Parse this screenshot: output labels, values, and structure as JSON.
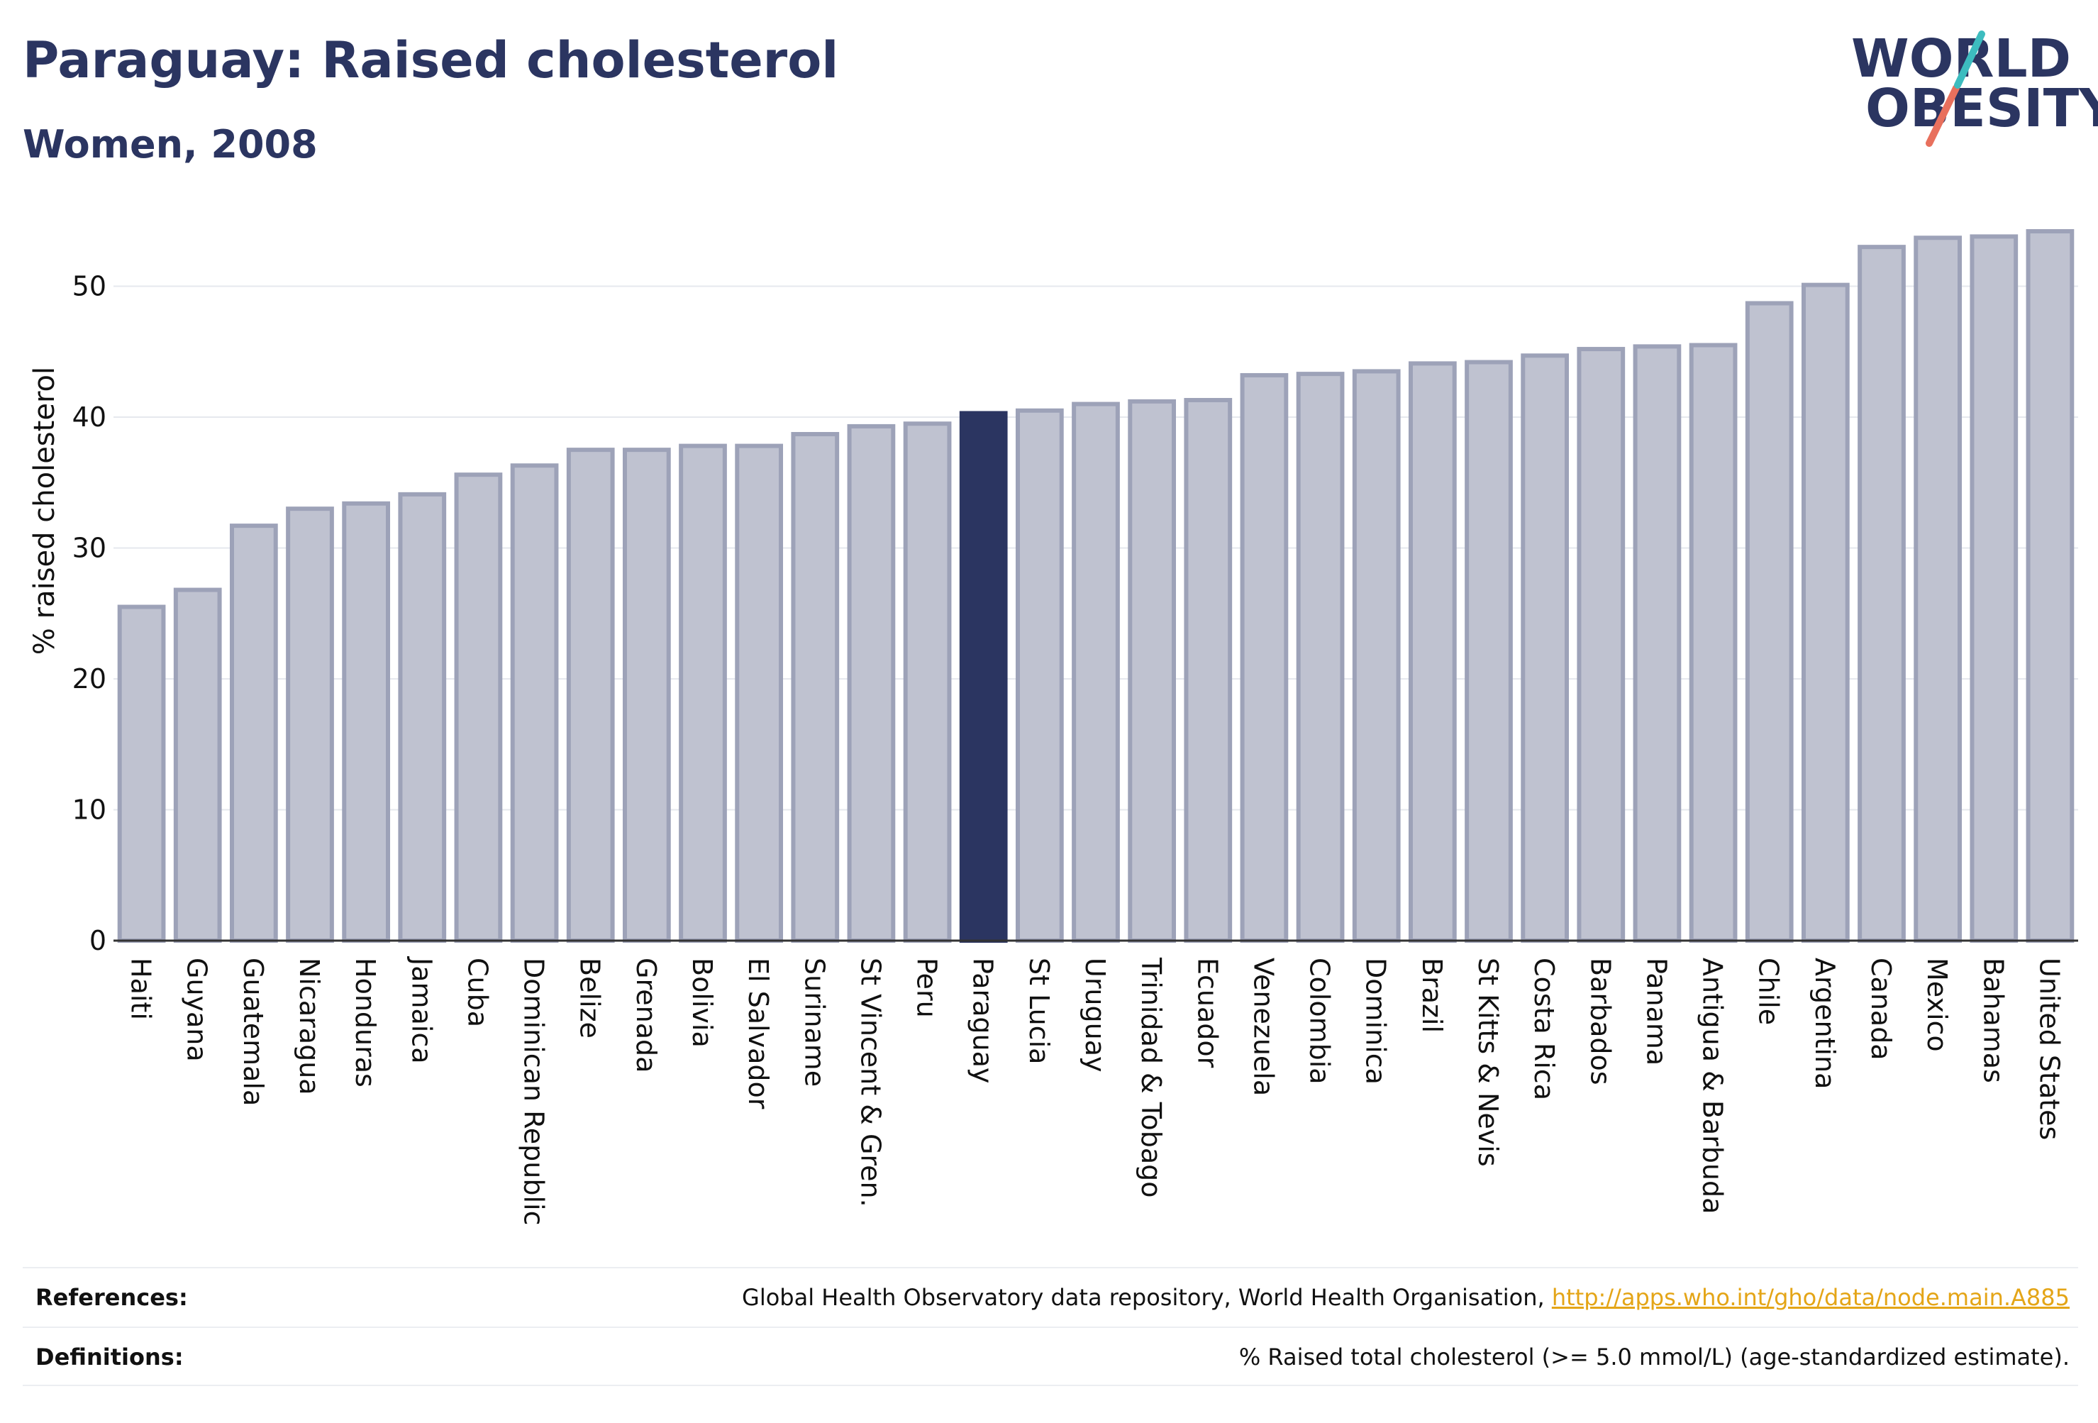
{
  "header": {
    "title": "Paraguay: Raised cholesterol",
    "subtitle": "Women, 2008"
  },
  "logo": {
    "line1": "WORLD",
    "line2": "OBESITY",
    "colors": {
      "teal": "#3dbcbf",
      "coral": "#e8705d",
      "navy": "#2b3561"
    }
  },
  "colors": {
    "bar": "#bfc2d0",
    "bar_outline": "#9da2b8",
    "highlight": "#2b3561",
    "grid": "#e6e8ee",
    "axis": "#333333",
    "link": "#e4a517"
  },
  "chart_data": {
    "type": "bar",
    "ylabel": "% raised cholesterol",
    "ylim": [
      0,
      55
    ],
    "yticks": [
      0,
      10,
      20,
      30,
      40,
      50
    ],
    "grid": "horizontal",
    "highlight": "Paraguay",
    "categories": [
      "Haiti",
      "Guyana",
      "Guatemala",
      "Nicaragua",
      "Honduras",
      "Jamaica",
      "Cuba",
      "Dominican Republic",
      "Belize",
      "Grenada",
      "Bolivia",
      "El Salvador",
      "Suriname",
      "St Vincent & Gren.",
      "Peru",
      "Paraguay",
      "St Lucia",
      "Uruguay",
      "Trinidad & Tobago",
      "Ecuador",
      "Venezuela",
      "Colombia",
      "Dominica",
      "Brazil",
      "St Kitts & Nevis",
      "Costa Rica",
      "Barbados",
      "Panama",
      "Antigua & Barbuda",
      "Chile",
      "Argentina",
      "Canada",
      "Mexico",
      "Bahamas",
      "United States"
    ],
    "values": [
      25.5,
      26.8,
      31.7,
      33.0,
      33.4,
      34.1,
      35.6,
      36.3,
      37.5,
      37.5,
      37.8,
      37.8,
      38.7,
      39.3,
      39.5,
      40.3,
      40.5,
      41.0,
      41.2,
      41.3,
      43.2,
      43.3,
      43.5,
      44.1,
      44.2,
      44.7,
      45.2,
      45.4,
      45.5,
      48.7,
      50.1,
      53.0,
      53.7,
      53.8,
      54.2
    ]
  },
  "footer": {
    "references_label": "References:",
    "references_text": "Global Health Observatory data repository, World Health Organisation, ",
    "references_link": "http://apps.who.int/gho/data/node.main.A885",
    "definitions_label": "Definitions:",
    "definitions_text": "% Raised total cholesterol (>= 5.0 mmol/L) (age-standardized estimate)."
  }
}
